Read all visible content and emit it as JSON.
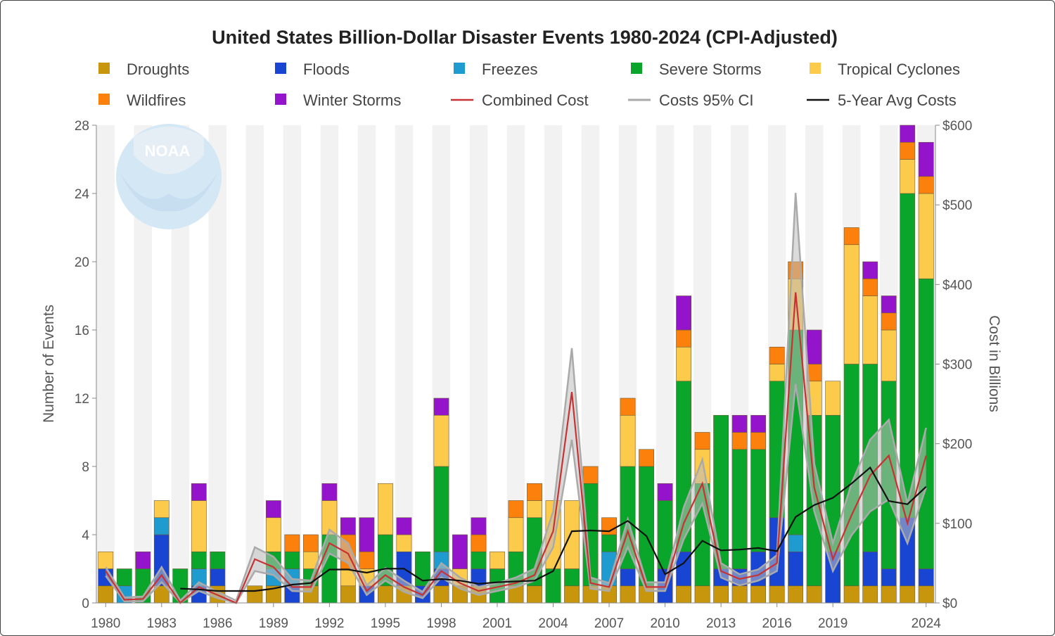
{
  "chart_data": {
    "type": "bar",
    "title": "United States Billion-Dollar Disaster Events 1980-2024 (CPI-Adjusted)",
    "logo_text": "NOAA",
    "ylabel": "Number of Events",
    "y2label": "Cost in Billions",
    "ylim": [
      0,
      28
    ],
    "y2lim": [
      0,
      600
    ],
    "yticks": [
      "0",
      "4",
      "8",
      "12",
      "16",
      "20",
      "24",
      "28"
    ],
    "y2ticks": [
      "$0",
      "$100",
      "$200",
      "$300",
      "$400",
      "$500",
      "$600"
    ],
    "xtick_labels": [
      "1980",
      "1983",
      "1986",
      "1989",
      "1992",
      "1995",
      "1998",
      "2001",
      "2004",
      "2007",
      "2010",
      "2013",
      "2016",
      "2019",
      "2024"
    ],
    "years": [
      1980,
      1981,
      1982,
      1983,
      1984,
      1985,
      1986,
      1987,
      1988,
      1989,
      1990,
      1991,
      1992,
      1993,
      1994,
      1995,
      1996,
      1997,
      1998,
      1999,
      2000,
      2001,
      2002,
      2003,
      2004,
      2005,
      2006,
      2007,
      2008,
      2009,
      2010,
      2011,
      2012,
      2013,
      2014,
      2015,
      2016,
      2017,
      2018,
      2019,
      2020,
      2021,
      2022,
      2023,
      2024
    ],
    "series": [
      {
        "name": "Droughts",
        "color": "#c8960c",
        "values": [
          1,
          0,
          0,
          1,
          0,
          0,
          1,
          0,
          1,
          1,
          0,
          1,
          0,
          1,
          0,
          1,
          1,
          0,
          1,
          1,
          1,
          0,
          1,
          1,
          0,
          1,
          1,
          1,
          1,
          1,
          0,
          1,
          1,
          1,
          1,
          1,
          1,
          1,
          1,
          0,
          1,
          1,
          1,
          1,
          1
        ]
      },
      {
        "name": "Floods",
        "color": "#1846d2",
        "values": [
          1,
          0,
          0,
          3,
          0,
          1,
          1,
          0,
          0,
          0,
          1,
          0,
          0,
          0,
          1,
          0,
          2,
          1,
          1,
          0,
          1,
          0,
          0,
          0,
          0,
          0,
          0,
          0,
          1,
          0,
          2,
          2,
          0,
          1,
          1,
          2,
          4,
          2,
          0,
          3,
          0,
          2,
          1,
          4,
          1
        ]
      },
      {
        "name": "Freezes",
        "color": "#1f9bd0",
        "values": [
          0,
          1,
          0,
          1,
          0,
          1,
          0,
          0,
          0,
          1,
          1,
          0,
          0,
          0,
          0,
          0,
          0,
          0,
          1,
          0,
          0,
          0,
          0,
          0,
          0,
          0,
          0,
          2,
          0,
          0,
          0,
          0,
          0,
          0,
          0,
          0,
          0,
          1,
          0,
          0,
          0,
          0,
          0,
          0,
          0
        ]
      },
      {
        "name": "Severe Storms",
        "color": "#0aa52b",
        "values": [
          0,
          1,
          2,
          0,
          2,
          1,
          1,
          0,
          0,
          1,
          1,
          1,
          4,
          0,
          0,
          3,
          0,
          2,
          5,
          0,
          1,
          2,
          2,
          4,
          2,
          1,
          6,
          1,
          6,
          7,
          4,
          10,
          6,
          9,
          7,
          6,
          8,
          12,
          10,
          8,
          13,
          11,
          11,
          19,
          17
        ]
      },
      {
        "name": "Tropical Cyclones",
        "color": "#fdcb4c",
        "values": [
          1,
          0,
          0,
          1,
          0,
          3,
          0,
          0,
          0,
          2,
          0,
          1,
          2,
          1,
          1,
          3,
          1,
          0,
          3,
          1,
          0,
          1,
          2,
          1,
          4,
          4,
          0,
          0,
          3,
          0,
          0,
          2,
          2,
          0,
          0,
          0,
          1,
          3,
          2,
          2,
          7,
          4,
          3,
          2,
          5
        ]
      },
      {
        "name": "Wildfires",
        "color": "#fb800c",
        "values": [
          0,
          0,
          0,
          0,
          0,
          0,
          0,
          0,
          0,
          0,
          1,
          1,
          0,
          2,
          1,
          0,
          0,
          0,
          0,
          0,
          1,
          0,
          1,
          1,
          0,
          0,
          1,
          1,
          1,
          1,
          0,
          1,
          1,
          0,
          1,
          1,
          1,
          1,
          1,
          0,
          1,
          1,
          1,
          1,
          1
        ]
      },
      {
        "name": "Winter Storms",
        "color": "#9414cc",
        "values": [
          0,
          0,
          1,
          0,
          0,
          1,
          0,
          0,
          0,
          1,
          0,
          0,
          1,
          1,
          2,
          0,
          1,
          0,
          1,
          2,
          1,
          0,
          0,
          0,
          0,
          0,
          0,
          0,
          0,
          0,
          1,
          2,
          0,
          0,
          1,
          1,
          0,
          0,
          2,
          0,
          0,
          1,
          1,
          1,
          2
        ]
      }
    ],
    "lines": [
      {
        "name": "Combined Cost",
        "color": "#c83232",
        "values": [
          40,
          4,
          5,
          35,
          0,
          20,
          10,
          0,
          55,
          45,
          20,
          20,
          75,
          62,
          15,
          35,
          20,
          10,
          40,
          25,
          15,
          20,
          25,
          35,
          90,
          265,
          25,
          20,
          90,
          20,
          20,
          100,
          150,
          40,
          30,
          35,
          50,
          390,
          145,
          55,
          110,
          160,
          185,
          100,
          185
        ]
      },
      {
        "name": "Costs 95% CI",
        "color": "#aaaaaa",
        "upper": [
          45,
          7,
          8,
          45,
          3,
          26,
          14,
          3,
          70,
          58,
          30,
          28,
          92,
          75,
          22,
          44,
          28,
          14,
          50,
          32,
          20,
          25,
          32,
          43,
          115,
          320,
          32,
          25,
          105,
          26,
          26,
          120,
          180,
          50,
          36,
          42,
          60,
          515,
          175,
          75,
          150,
          205,
          230,
          125,
          220
        ],
        "lower": [
          34,
          2,
          2,
          26,
          0,
          15,
          6,
          0,
          40,
          35,
          15,
          14,
          62,
          50,
          10,
          28,
          14,
          6,
          32,
          18,
          10,
          15,
          20,
          28,
          70,
          205,
          18,
          15,
          70,
          15,
          15,
          80,
          125,
          32,
          22,
          28,
          40,
          275,
          115,
          40,
          85,
          115,
          130,
          75,
          145
        ]
      },
      {
        "name": "5-Year Avg Costs",
        "color": "#111111",
        "start_year": 1984,
        "values": [
          18,
          17,
          15,
          15,
          15,
          18,
          23,
          25,
          42,
          42,
          38,
          43,
          43,
          28,
          30,
          28,
          24,
          26,
          27,
          28,
          40,
          90,
          91,
          90,
          103,
          84,
          36,
          50,
          78,
          66,
          67,
          69,
          65,
          108,
          123,
          132,
          150,
          170,
          128,
          124,
          146
        ]
      }
    ]
  }
}
